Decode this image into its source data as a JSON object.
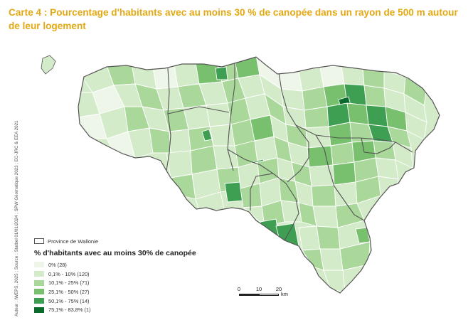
{
  "title": "Carte 4 : Pourcentage d'habitants avec au moins 30 % de canopée dans un rayon de 500 m autour de leur logement",
  "credit": "Auteur : IWEPS, 2025 ; Source : Statbel 01/01/2024 ; SPW Géomatique 2023 ; EC-JRC & EEA 2021",
  "province_label": "Province de Wallonie",
  "legend_title": "% d'habitants avec au moins 30% de canopée",
  "legend": [
    {
      "label": "0% (28)",
      "color": "#eef6ea"
    },
    {
      "label": "0,1% - 10% (120)",
      "color": "#d4ebc9"
    },
    {
      "label": "10,1% - 25% (71)",
      "color": "#aad79a"
    },
    {
      "label": "25,1% - 50% (27)",
      "color": "#78c06e"
    },
    {
      "label": "50,1% - 75% (14)",
      "color": "#3e9e52"
    },
    {
      "label": "75,1% - 83,8% (1)",
      "color": "#0c6b2c"
    }
  ],
  "scale": {
    "ticks": [
      "0",
      "10",
      "20"
    ],
    "unit": "km"
  },
  "colors": {
    "title": "#e3a812",
    "boundary": "#555555",
    "muni_stroke": "#ffffff"
  }
}
